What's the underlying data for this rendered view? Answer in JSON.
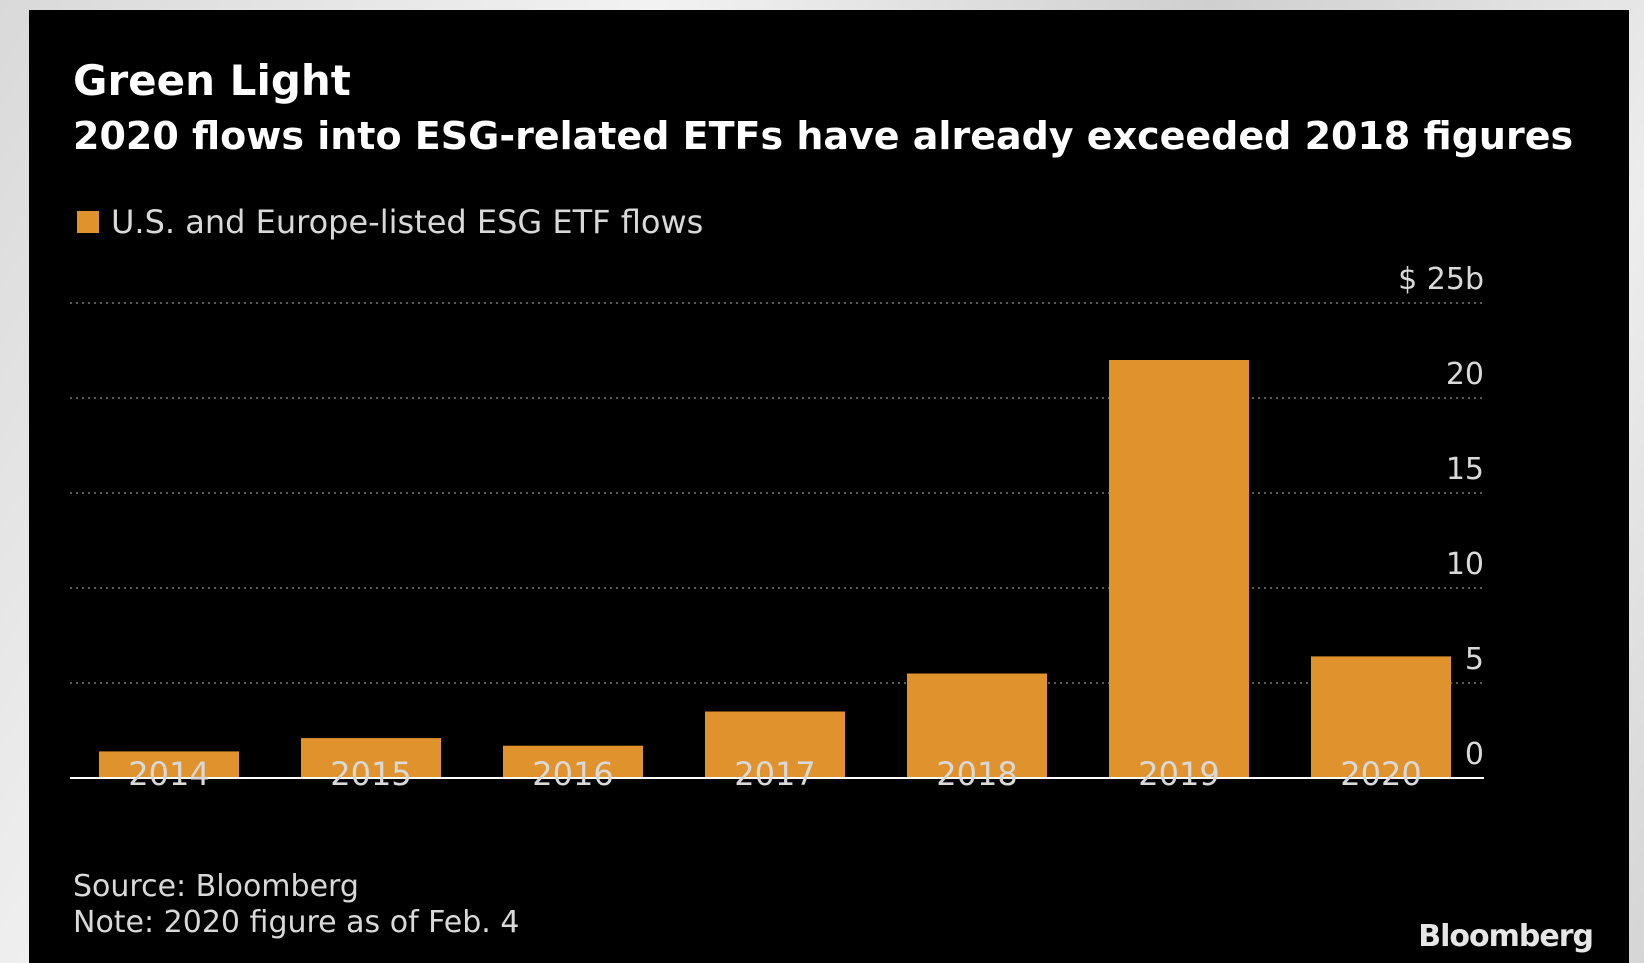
{
  "title": "Green Light",
  "subtitle": "2020 flows into ESG-related ETFs have already exceeded 2018 figures",
  "legend_label": "U.S. and Europe-listed ESG ETF flows",
  "source": "Source: Bloomberg",
  "note": "Note: 2020 figure as of Feb. 4",
  "brand": "Bloomberg",
  "colors": {
    "background": "#000000",
    "bar": "#e0922c",
    "grid": "#5a5a5a",
    "axis": "#ffffff",
    "tick_text": "#d9d9d9"
  },
  "chart_data": {
    "type": "bar",
    "title": "Green Light",
    "subtitle": "2020 flows into ESG-related ETFs have already exceeded 2018 figures",
    "categories": [
      "2014",
      "2015",
      "2016",
      "2017",
      "2018",
      "2019",
      "2020"
    ],
    "series": [
      {
        "name": "U.S. and Europe-listed ESG ETF flows",
        "values": [
          1.4,
          2.1,
          1.7,
          3.5,
          5.5,
          22.0,
          6.4
        ]
      }
    ],
    "ylim": [
      0,
      25
    ],
    "yticks": [
      0,
      5,
      10,
      15,
      20,
      25
    ],
    "ytick_labels": [
      "0",
      "5",
      "10",
      "15",
      "20",
      "$ 25b"
    ],
    "y_axis_side": "right",
    "grid": true,
    "grid_style": "dotted",
    "legend_position": "top-left"
  }
}
